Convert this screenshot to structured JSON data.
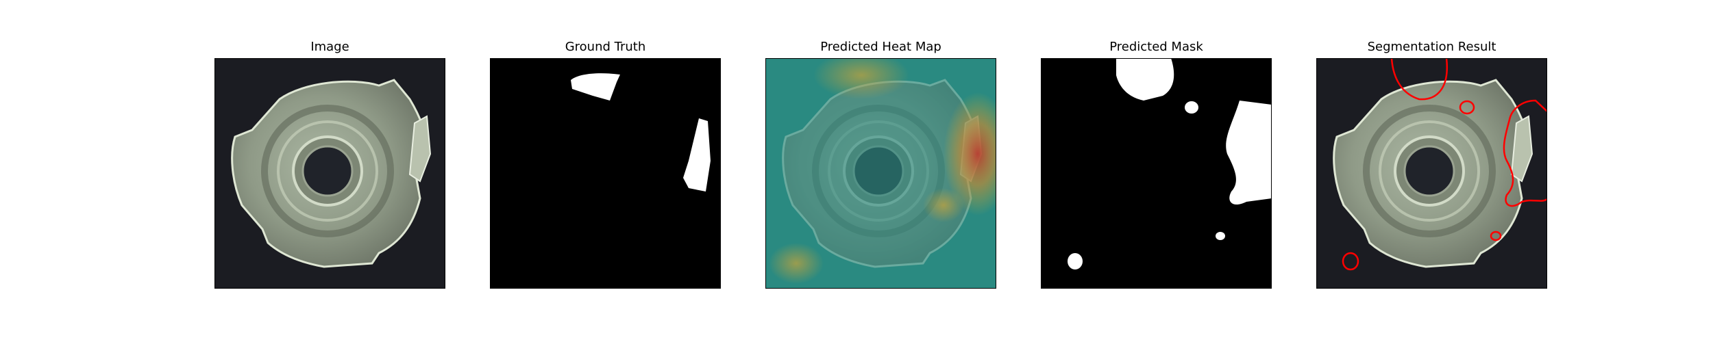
{
  "panels": [
    {
      "title": "Image"
    },
    {
      "title": "Ground Truth"
    },
    {
      "title": "Predicted Heat Map"
    },
    {
      "title": "Predicted Mask"
    },
    {
      "title": "Segmentation Result"
    }
  ],
  "colors": {
    "background_dark": "#1b1c22",
    "part_light": "#c8d3bd",
    "mask_white": "#ffffff",
    "mask_black": "#000000",
    "heatmap_base": "#2a8a82",
    "heatmap_hot": "#c0392b",
    "contour_red": "#ff0000"
  }
}
